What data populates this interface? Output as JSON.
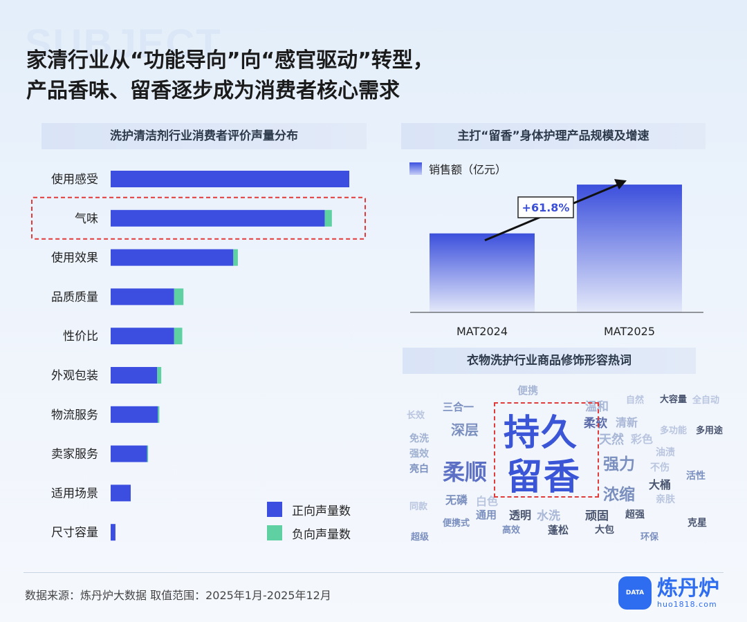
{
  "watermark_word": "SUBJECT",
  "headline": {
    "line1": "家清行业从“功能导向”向“感官驱动”转型，",
    "line2": "产品香味、留香逐步成为消费者核心需求"
  },
  "left_panel_title": "洗护清洁剂行业消费者评价声量分布",
  "right_panel_title": "主打“留香”身体护理产品规模及增速",
  "wordcloud_title": "衣物洗护行业商品修饰形容热词",
  "colors": {
    "positive": "#3b4ee0",
    "negative": "#5fd0a2",
    "highlight_border": "#e03b3b",
    "accent": "#2f6df0"
  },
  "chart_data": [
    {
      "type": "bar",
      "orientation": "horizontal",
      "stacked": true,
      "categories": [
        "使用感受",
        "气味",
        "使用效果",
        "品质质量",
        "性价比",
        "外观包装",
        "物流服务",
        "卖家服务",
        "适用场景",
        "尺寸容量"
      ],
      "series": [
        {
          "name": "正向声量数",
          "values": [
            100,
            89.7,
            51.4,
            26.6,
            26.6,
            19.5,
            19.8,
            15.3,
            8.4,
            2.0
          ]
        },
        {
          "name": "负向声量数",
          "values": [
            0,
            3.0,
            1.9,
            3.9,
            3.4,
            1.7,
            0.6,
            0.4,
            0,
            0
          ]
        }
      ],
      "highlighted_category": "气味",
      "legend_position": "bottom-right",
      "axis": "hidden",
      "grid": false
    },
    {
      "type": "bar",
      "categories": [
        "MAT2024",
        "MAT2025"
      ],
      "series": [
        {
          "name": "销售额（亿元）",
          "values": [
            100,
            161.8
          ]
        }
      ],
      "annotation": "+61.8%",
      "legend_position": "top-left",
      "ylim": [
        0,
        175
      ],
      "axis": "hidden",
      "grid": false
    }
  ],
  "wordcloud": {
    "highlight": [
      "持久",
      "留香"
    ],
    "words": [
      {
        "text": "便携",
        "color": "#a9b7d6"
      },
      {
        "text": "温和",
        "color": "#a9b7d6"
      },
      {
        "text": "自然",
        "color": "#b9c5df"
      },
      {
        "text": "大容量",
        "color": "#4a5570"
      },
      {
        "text": "全自动",
        "color": "#b9c5df"
      },
      {
        "text": "三合一",
        "color": "#7b8fbf"
      },
      {
        "text": "长效",
        "color": "#b9c5df"
      },
      {
        "text": "深层",
        "color": "#7b8fbf"
      },
      {
        "text": "柔软",
        "color": "#5a6aa8"
      },
      {
        "text": "清新",
        "color": "#a9b7d6"
      },
      {
        "text": "多功能",
        "color": "#b9c5df"
      },
      {
        "text": "多用途",
        "color": "#4a5570"
      },
      {
        "text": "免洗",
        "color": "#9fb0d0"
      },
      {
        "text": "天然",
        "color": "#a9b7d6"
      },
      {
        "text": "彩色",
        "color": "#b9c5df"
      },
      {
        "text": "强效",
        "color": "#9fb0d0"
      },
      {
        "text": "油渍",
        "color": "#b9c5df"
      },
      {
        "text": "亮白",
        "color": "#7b8fbf"
      },
      {
        "text": "柔顺",
        "color": "#5b6fc4"
      },
      {
        "text": "强力",
        "color": "#7b8fbf"
      },
      {
        "text": "不伤",
        "color": "#b9c5df"
      },
      {
        "text": "活性",
        "color": "#7b8fbf"
      },
      {
        "text": "大桶",
        "color": "#4a5570"
      },
      {
        "text": "无磷",
        "color": "#7b8fbf"
      },
      {
        "text": "白色",
        "color": "#b9c5df"
      },
      {
        "text": "浓缩",
        "color": "#7b8fbf"
      },
      {
        "text": "亲肤",
        "color": "#b9c5df"
      },
      {
        "text": "同款",
        "color": "#b9c5df"
      },
      {
        "text": "通用",
        "color": "#7b8fbf"
      },
      {
        "text": "透明",
        "color": "#4a5570"
      },
      {
        "text": "水洗",
        "color": "#a9b7d6"
      },
      {
        "text": "顽固",
        "color": "#4a5570"
      },
      {
        "text": "超强",
        "color": "#4a5570"
      },
      {
        "text": "便携式",
        "color": "#7b8fbf"
      },
      {
        "text": "克星",
        "color": "#4a5570"
      },
      {
        "text": "高效",
        "color": "#7b8fbf"
      },
      {
        "text": "蓬松",
        "color": "#4a5570"
      },
      {
        "text": "大包",
        "color": "#4a5570"
      },
      {
        "text": "超级",
        "color": "#7b8fbf"
      },
      {
        "text": "环保",
        "color": "#7b8fbf"
      }
    ]
  },
  "footer": {
    "source": "数据来源：炼丹炉大数据    取值范围：2025年1月-2025年12月"
  },
  "brand": {
    "name": "炼丹炉",
    "url": "huo1818.com",
    "logo_text": "DATA"
  }
}
